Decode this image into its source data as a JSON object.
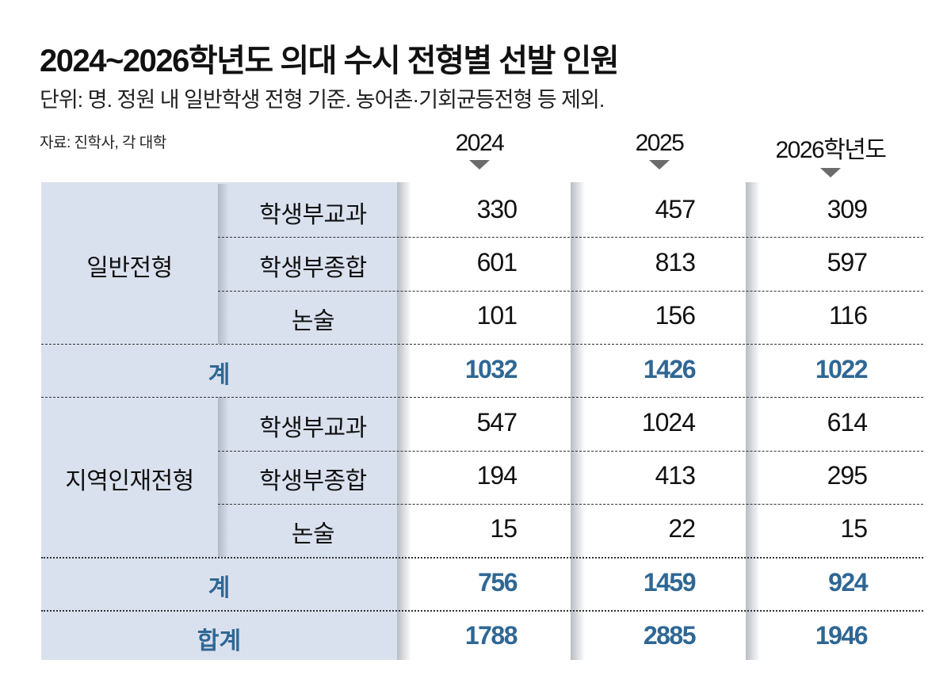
{
  "header": {
    "title": "2024~2026학년도 의대 수시 전형별 선발 인원",
    "subtitle": "단위: 명. 정원 내 일반학생 전형 기준. 농어촌·기회균등전형 등 제외.",
    "source": "자료: 진학사, 각 대학"
  },
  "colors": {
    "label_band": "#dae1ee",
    "total_text": "#2f6794",
    "arrow": "#6b6b6b"
  },
  "chart_data": {
    "type": "table",
    "title": "2024~2026학년도 의대 수시 전형별 선발 인원",
    "subtitle": "단위: 명. 정원 내 일반학생 전형 기준. 농어촌·기회균등전형 등 제외.",
    "source": "자료: 진학사, 각 대학",
    "columns": [
      "2024",
      "2025",
      "2026학년도"
    ],
    "groups": [
      {
        "name": "일반전형",
        "rows": [
          {
            "label": "학생부교과",
            "values": [
              330,
              457,
              309
            ]
          },
          {
            "label": "학생부종합",
            "values": [
              601,
              813,
              597
            ]
          },
          {
            "label": "논술",
            "values": [
              101,
              156,
              116
            ]
          }
        ],
        "subtotal": {
          "label": "계",
          "values": [
            1032,
            1426,
            1022
          ]
        }
      },
      {
        "name": "지역인재전형",
        "rows": [
          {
            "label": "학생부교과",
            "values": [
              547,
              1024,
              614
            ]
          },
          {
            "label": "학생부종합",
            "values": [
              194,
              413,
              295
            ]
          },
          {
            "label": "논술",
            "values": [
              15,
              22,
              15
            ]
          }
        ],
        "subtotal": {
          "label": "계",
          "values": [
            756,
            1459,
            924
          ]
        }
      }
    ],
    "grand_total": {
      "label": "합계",
      "values": [
        1788,
        2885,
        1946
      ]
    }
  }
}
